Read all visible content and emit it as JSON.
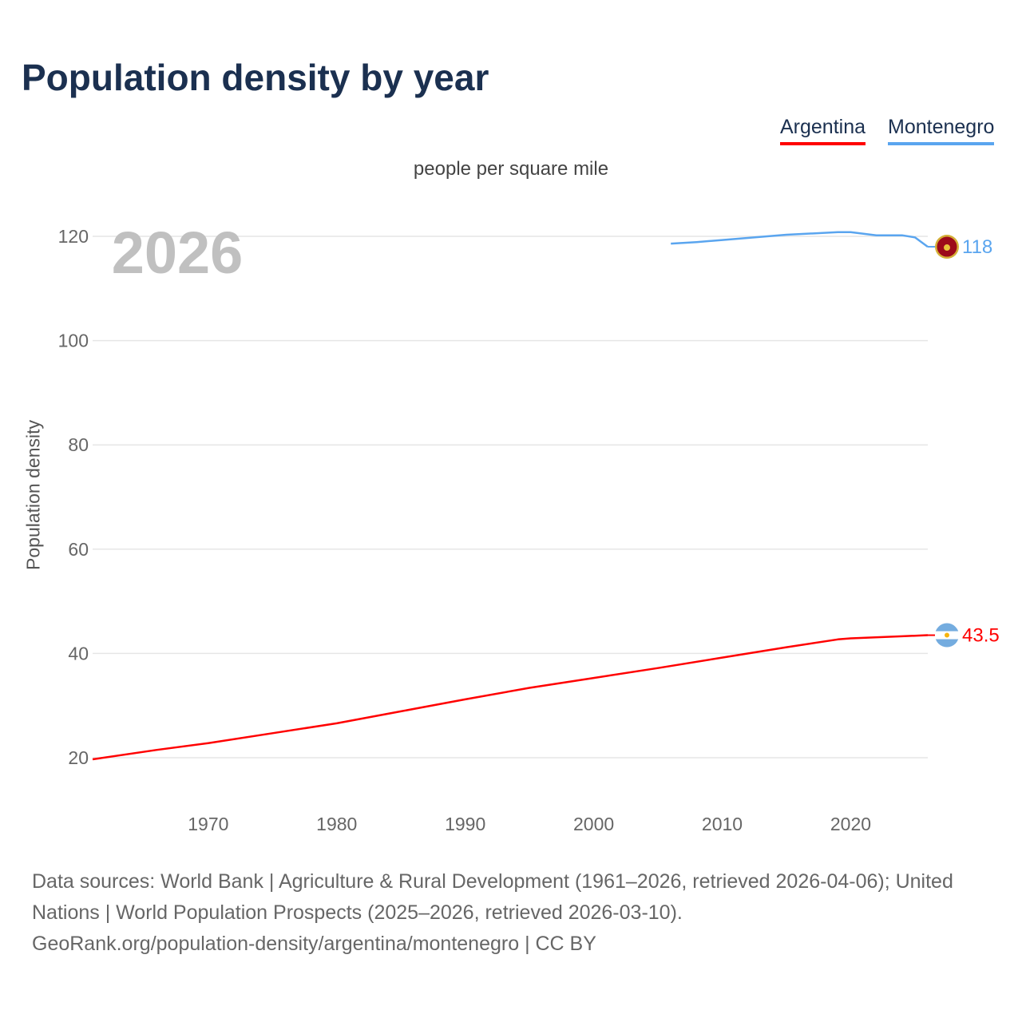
{
  "title": "Population density by year",
  "legend": [
    {
      "label": "Argentina",
      "color": "#ff0000"
    },
    {
      "label": "Montenegro",
      "color": "#5aa5ef"
    }
  ],
  "subtitle": "people per square mile",
  "year_overlay": "2026",
  "footer": {
    "line1": "Data sources: World Bank | Agriculture & Rural Development (1961–2026, retrieved 2026-04-06); United Nations | World Population Prospects (2025–2026, retrieved 2026-03-10).",
    "line2": "GeoRank.org/population-density/argentina/montenegro | CC BY"
  },
  "chart_data": {
    "type": "line",
    "title": "Population density by year",
    "xlabel": "",
    "ylabel": "Population density",
    "xlim": [
      1961,
      2026
    ],
    "ylim": [
      10,
      130
    ],
    "x_ticks": [
      1970,
      1980,
      1990,
      2000,
      2010,
      2020
    ],
    "y_ticks": [
      20,
      40,
      60,
      80,
      100,
      120
    ],
    "grid": true,
    "legend_position": "top-right",
    "series": [
      {
        "name": "Argentina",
        "color": "#ff0000",
        "end_label": "43.5",
        "flag": "argentina-flag",
        "x": [
          1961,
          1966,
          1970,
          1975,
          1980,
          1985,
          1990,
          1995,
          2000,
          2005,
          2010,
          2015,
          2019,
          2020,
          2024,
          2026
        ],
        "y": [
          19.7,
          21.5,
          22.8,
          24.7,
          26.6,
          28.9,
          31.2,
          33.4,
          35.3,
          37.2,
          39.2,
          41.2,
          42.7,
          42.9,
          43.3,
          43.5
        ]
      },
      {
        "name": "Montenegro",
        "color": "#5aa5ef",
        "end_label": "118",
        "flag": "montenegro-flag",
        "x": [
          2006,
          2008,
          2010,
          2015,
          2019,
          2020,
          2022,
          2024,
          2025,
          2026
        ],
        "y": [
          118.6,
          118.9,
          119.3,
          120.3,
          120.8,
          120.8,
          120.2,
          120.2,
          119.8,
          118.0
        ]
      }
    ]
  }
}
